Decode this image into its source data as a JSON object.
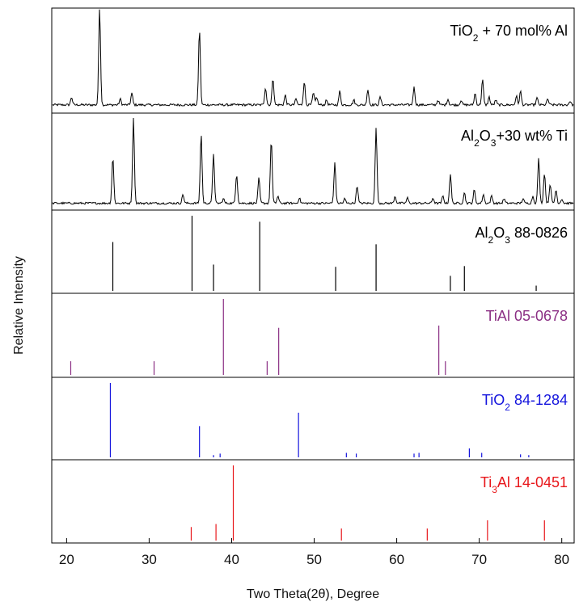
{
  "chart_data": {
    "type": "line",
    "xlabel": "Two Theta(2θ), Degree",
    "ylabel": "Relative Intensity",
    "xlim": [
      18.2,
      81.5
    ],
    "xticks": [
      20,
      30,
      40,
      50,
      60,
      70,
      80
    ],
    "grid": false,
    "stacked_panels": true,
    "panels": [
      {
        "kind": "measured",
        "label_parts": [
          "TiO",
          "2",
          " + 70 mol% Al"
        ],
        "color": "#000000",
        "baseline": 0.06,
        "noise": 0.012,
        "peaks": [
          [
            20.6,
            0.08
          ],
          [
            24.0,
            1.0
          ],
          [
            26.5,
            0.06
          ],
          [
            27.9,
            0.12
          ],
          [
            36.1,
            0.78
          ],
          [
            44.1,
            0.18
          ],
          [
            45.0,
            0.28
          ],
          [
            46.5,
            0.1
          ],
          [
            47.8,
            0.06
          ],
          [
            48.8,
            0.24
          ],
          [
            49.9,
            0.12
          ],
          [
            50.3,
            0.08
          ],
          [
            51.5,
            0.05
          ],
          [
            53.1,
            0.14
          ],
          [
            54.8,
            0.05
          ],
          [
            56.5,
            0.16
          ],
          [
            58.0,
            0.08
          ],
          [
            62.1,
            0.18
          ],
          [
            65.0,
            0.05
          ],
          [
            66.2,
            0.06
          ],
          [
            67.8,
            0.05
          ],
          [
            69.5,
            0.12
          ],
          [
            70.4,
            0.26
          ],
          [
            71.2,
            0.08
          ],
          [
            72.0,
            0.05
          ],
          [
            74.5,
            0.09
          ],
          [
            75.0,
            0.14
          ],
          [
            77.0,
            0.07
          ],
          [
            78.3,
            0.06
          ],
          [
            81.0,
            0.04
          ]
        ]
      },
      {
        "kind": "measured",
        "label_parts": [
          "Al",
          "2",
          "O",
          "3",
          "+30 wt% Ti"
        ],
        "color": "#000000",
        "baseline": 0.05,
        "noise": 0.012,
        "peaks": [
          [
            25.6,
            0.52
          ],
          [
            28.1,
            0.95
          ],
          [
            34.1,
            0.1
          ],
          [
            36.3,
            0.78
          ],
          [
            37.8,
            0.56
          ],
          [
            39.0,
            0.05
          ],
          [
            40.6,
            0.33
          ],
          [
            43.3,
            0.28
          ],
          [
            44.8,
            0.72
          ],
          [
            45.6,
            0.08
          ],
          [
            48.2,
            0.06
          ],
          [
            52.5,
            0.45
          ],
          [
            53.7,
            0.05
          ],
          [
            55.2,
            0.2
          ],
          [
            57.5,
            0.84
          ],
          [
            59.8,
            0.08
          ],
          [
            61.3,
            0.06
          ],
          [
            64.4,
            0.06
          ],
          [
            65.6,
            0.08
          ],
          [
            66.5,
            0.33
          ],
          [
            68.2,
            0.12
          ],
          [
            69.4,
            0.15
          ],
          [
            70.5,
            0.1
          ],
          [
            71.5,
            0.08
          ],
          [
            73.0,
            0.05
          ],
          [
            75.3,
            0.05
          ],
          [
            76.5,
            0.08
          ],
          [
            77.2,
            0.5
          ],
          [
            77.9,
            0.34
          ],
          [
            78.6,
            0.22
          ],
          [
            79.3,
            0.15
          ],
          [
            80.0,
            0.05
          ]
        ]
      },
      {
        "kind": "reference",
        "label_parts": [
          "Al",
          "2",
          "O",
          "3",
          "  88-0826"
        ],
        "color": "#000000",
        "lines": [
          [
            25.6,
            0.65
          ],
          [
            35.2,
            1.0
          ],
          [
            37.8,
            0.35
          ],
          [
            43.4,
            0.92
          ],
          [
            52.6,
            0.32
          ],
          [
            57.5,
            0.62
          ],
          [
            66.5,
            0.2
          ],
          [
            68.2,
            0.33
          ],
          [
            76.9,
            0.07
          ]
        ]
      },
      {
        "kind": "reference",
        "label_parts": [
          "TiAl  05-0678"
        ],
        "color": "#8b2f84",
        "lines": [
          [
            20.5,
            0.18
          ],
          [
            30.6,
            0.18
          ],
          [
            39.0,
            1.0
          ],
          [
            44.3,
            0.18
          ],
          [
            45.7,
            0.62
          ],
          [
            65.1,
            0.65
          ],
          [
            65.9,
            0.18
          ]
        ]
      },
      {
        "kind": "reference",
        "label_parts": [
          "TiO",
          "2",
          "  84-1284"
        ],
        "color": "#1414dd",
        "lines": [
          [
            25.3,
            1.0
          ],
          [
            36.1,
            0.42
          ],
          [
            37.8,
            0.03
          ],
          [
            38.6,
            0.05
          ],
          [
            48.1,
            0.6
          ],
          [
            53.9,
            0.06
          ],
          [
            55.1,
            0.05
          ],
          [
            62.1,
            0.05
          ],
          [
            62.7,
            0.06
          ],
          [
            68.8,
            0.12
          ],
          [
            70.3,
            0.06
          ],
          [
            75.0,
            0.04
          ],
          [
            76.0,
            0.03
          ]
        ]
      },
      {
        "kind": "reference",
        "label_parts": [
          "Ti",
          "3",
          "Al  14-0451"
        ],
        "color": "#e8161a",
        "lines": [
          [
            35.1,
            0.18
          ],
          [
            38.1,
            0.22
          ],
          [
            40.2,
            1.0
          ],
          [
            53.3,
            0.16
          ],
          [
            63.7,
            0.16
          ],
          [
            71.0,
            0.27
          ],
          [
            77.9,
            0.27
          ]
        ]
      }
    ]
  }
}
